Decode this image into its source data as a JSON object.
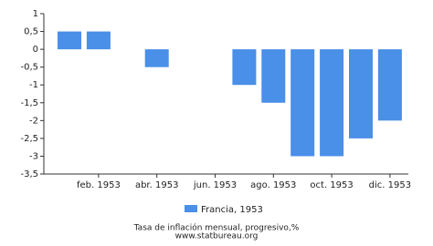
{
  "chart_data": {
    "type": "bar",
    "categories": [
      null,
      "feb. 1953",
      null,
      "abr. 1953",
      null,
      "jun. 1953",
      null,
      "ago. 1953",
      null,
      "oct. 1953",
      null,
      "dic. 1953"
    ],
    "series": [
      {
        "name": "Francia, 1953",
        "color": "#4a8fe8",
        "values": [
          0.5,
          0.5,
          0,
          -0.5,
          0,
          0,
          -1,
          -1.5,
          -3,
          -3,
          -2.5,
          -2
        ]
      }
    ],
    "ylim": [
      -3.5,
      1
    ],
    "yticks": [
      1,
      {
        "value": 0.5,
        "label": "0,5"
      },
      0,
      {
        "value": -0.5,
        "label": "-0,5"
      },
      -1,
      {
        "value": -1.5,
        "label": "-1,5"
      },
      -2,
      {
        "value": -2.5,
        "label": "-2,5"
      },
      -3,
      {
        "value": -3.5,
        "label": "-3,5"
      }
    ],
    "grid": false,
    "legend": "bottom",
    "footer": [
      "Tasa de inflación mensual, progresivo,%",
      "www.statbureau.org"
    ]
  }
}
